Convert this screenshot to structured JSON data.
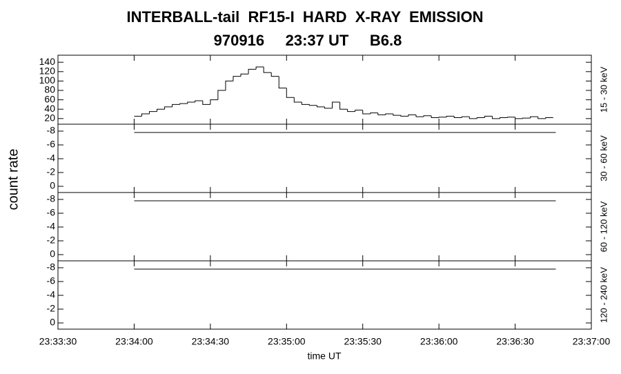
{
  "title": "INTERBALL-tail  RF15-I  HARD  X-RAY  EMISSION",
  "subtitle": "970916     23:37 UT     B6.8",
  "ylabel": "count rate",
  "xlabel": "time UT",
  "xlim": [
    "23:33:30",
    "23:37:00"
  ],
  "xticks": [
    "23:33:30",
    "23:34:00",
    "23:34:30",
    "23:35:00",
    "23:35:30",
    "23:36:00",
    "23:36:30",
    "23:37:00"
  ],
  "chart_data": [
    {
      "type": "histogram",
      "band": "15 - 30 keV",
      "color": "#000000",
      "ylim": [
        8,
        155
      ],
      "yticks": [
        20,
        40,
        60,
        80,
        100,
        120,
        140
      ],
      "bins": [
        "23:34:00",
        "23:34:03",
        "23:34:06",
        "23:34:09",
        "23:34:12",
        "23:34:15",
        "23:34:18",
        "23:34:21",
        "23:34:24",
        "23:34:27",
        "23:34:30",
        "23:34:33",
        "23:34:36",
        "23:34:39",
        "23:34:42",
        "23:34:45",
        "23:34:48",
        "23:34:51",
        "23:34:54",
        "23:34:57",
        "23:35:00",
        "23:35:03",
        "23:35:06",
        "23:35:09",
        "23:35:12",
        "23:35:15",
        "23:35:18",
        "23:35:21",
        "23:35:24",
        "23:35:27",
        "23:35:30",
        "23:35:33",
        "23:35:36",
        "23:35:39",
        "23:35:42",
        "23:35:45",
        "23:35:48",
        "23:35:51",
        "23:35:54",
        "23:35:57",
        "23:36:00",
        "23:36:03",
        "23:36:06",
        "23:36:09",
        "23:36:12",
        "23:36:15",
        "23:36:18",
        "23:36:21",
        "23:36:24",
        "23:36:27",
        "23:36:30",
        "23:36:33",
        "23:36:36",
        "23:36:39",
        "23:36:42",
        "23:36:45"
      ],
      "values": [
        25,
        30,
        35,
        40,
        45,
        50,
        52,
        55,
        58,
        50,
        60,
        80,
        100,
        110,
        115,
        125,
        130,
        118,
        110,
        85,
        65,
        55,
        50,
        48,
        45,
        42,
        55,
        40,
        35,
        38,
        30,
        32,
        28,
        30,
        27,
        25,
        28,
        24,
        26,
        22,
        23,
        25,
        22,
        24,
        20,
        22,
        25,
        20,
        22,
        23,
        20,
        21,
        24,
        20,
        22
      ]
    },
    {
      "type": "line",
      "band": "30 - 60 keV",
      "color": "#000000",
      "ylim": [
        0.9,
        -9
      ],
      "yticks": [
        0,
        -2,
        -4,
        -6,
        -8
      ],
      "x": [
        "23:34:00",
        "23:36:46"
      ],
      "values": [
        -7.8,
        -7.8
      ]
    },
    {
      "type": "line",
      "band": "60 - 120 keV",
      "color": "#000000",
      "ylim": [
        0.9,
        -9
      ],
      "yticks": [
        0,
        -2,
        -4,
        -6,
        -8
      ],
      "x": [
        "23:34:00",
        "23:36:46"
      ],
      "values": [
        -7.8,
        -7.8
      ]
    },
    {
      "type": "line",
      "band": "120 - 240 keV",
      "color": "#000000",
      "ylim": [
        0.9,
        -9
      ],
      "yticks": [
        0,
        -2,
        -4,
        -6,
        -8
      ],
      "x": [
        "23:34:00",
        "23:36:46"
      ],
      "values": [
        -7.8,
        -7.8
      ]
    }
  ]
}
